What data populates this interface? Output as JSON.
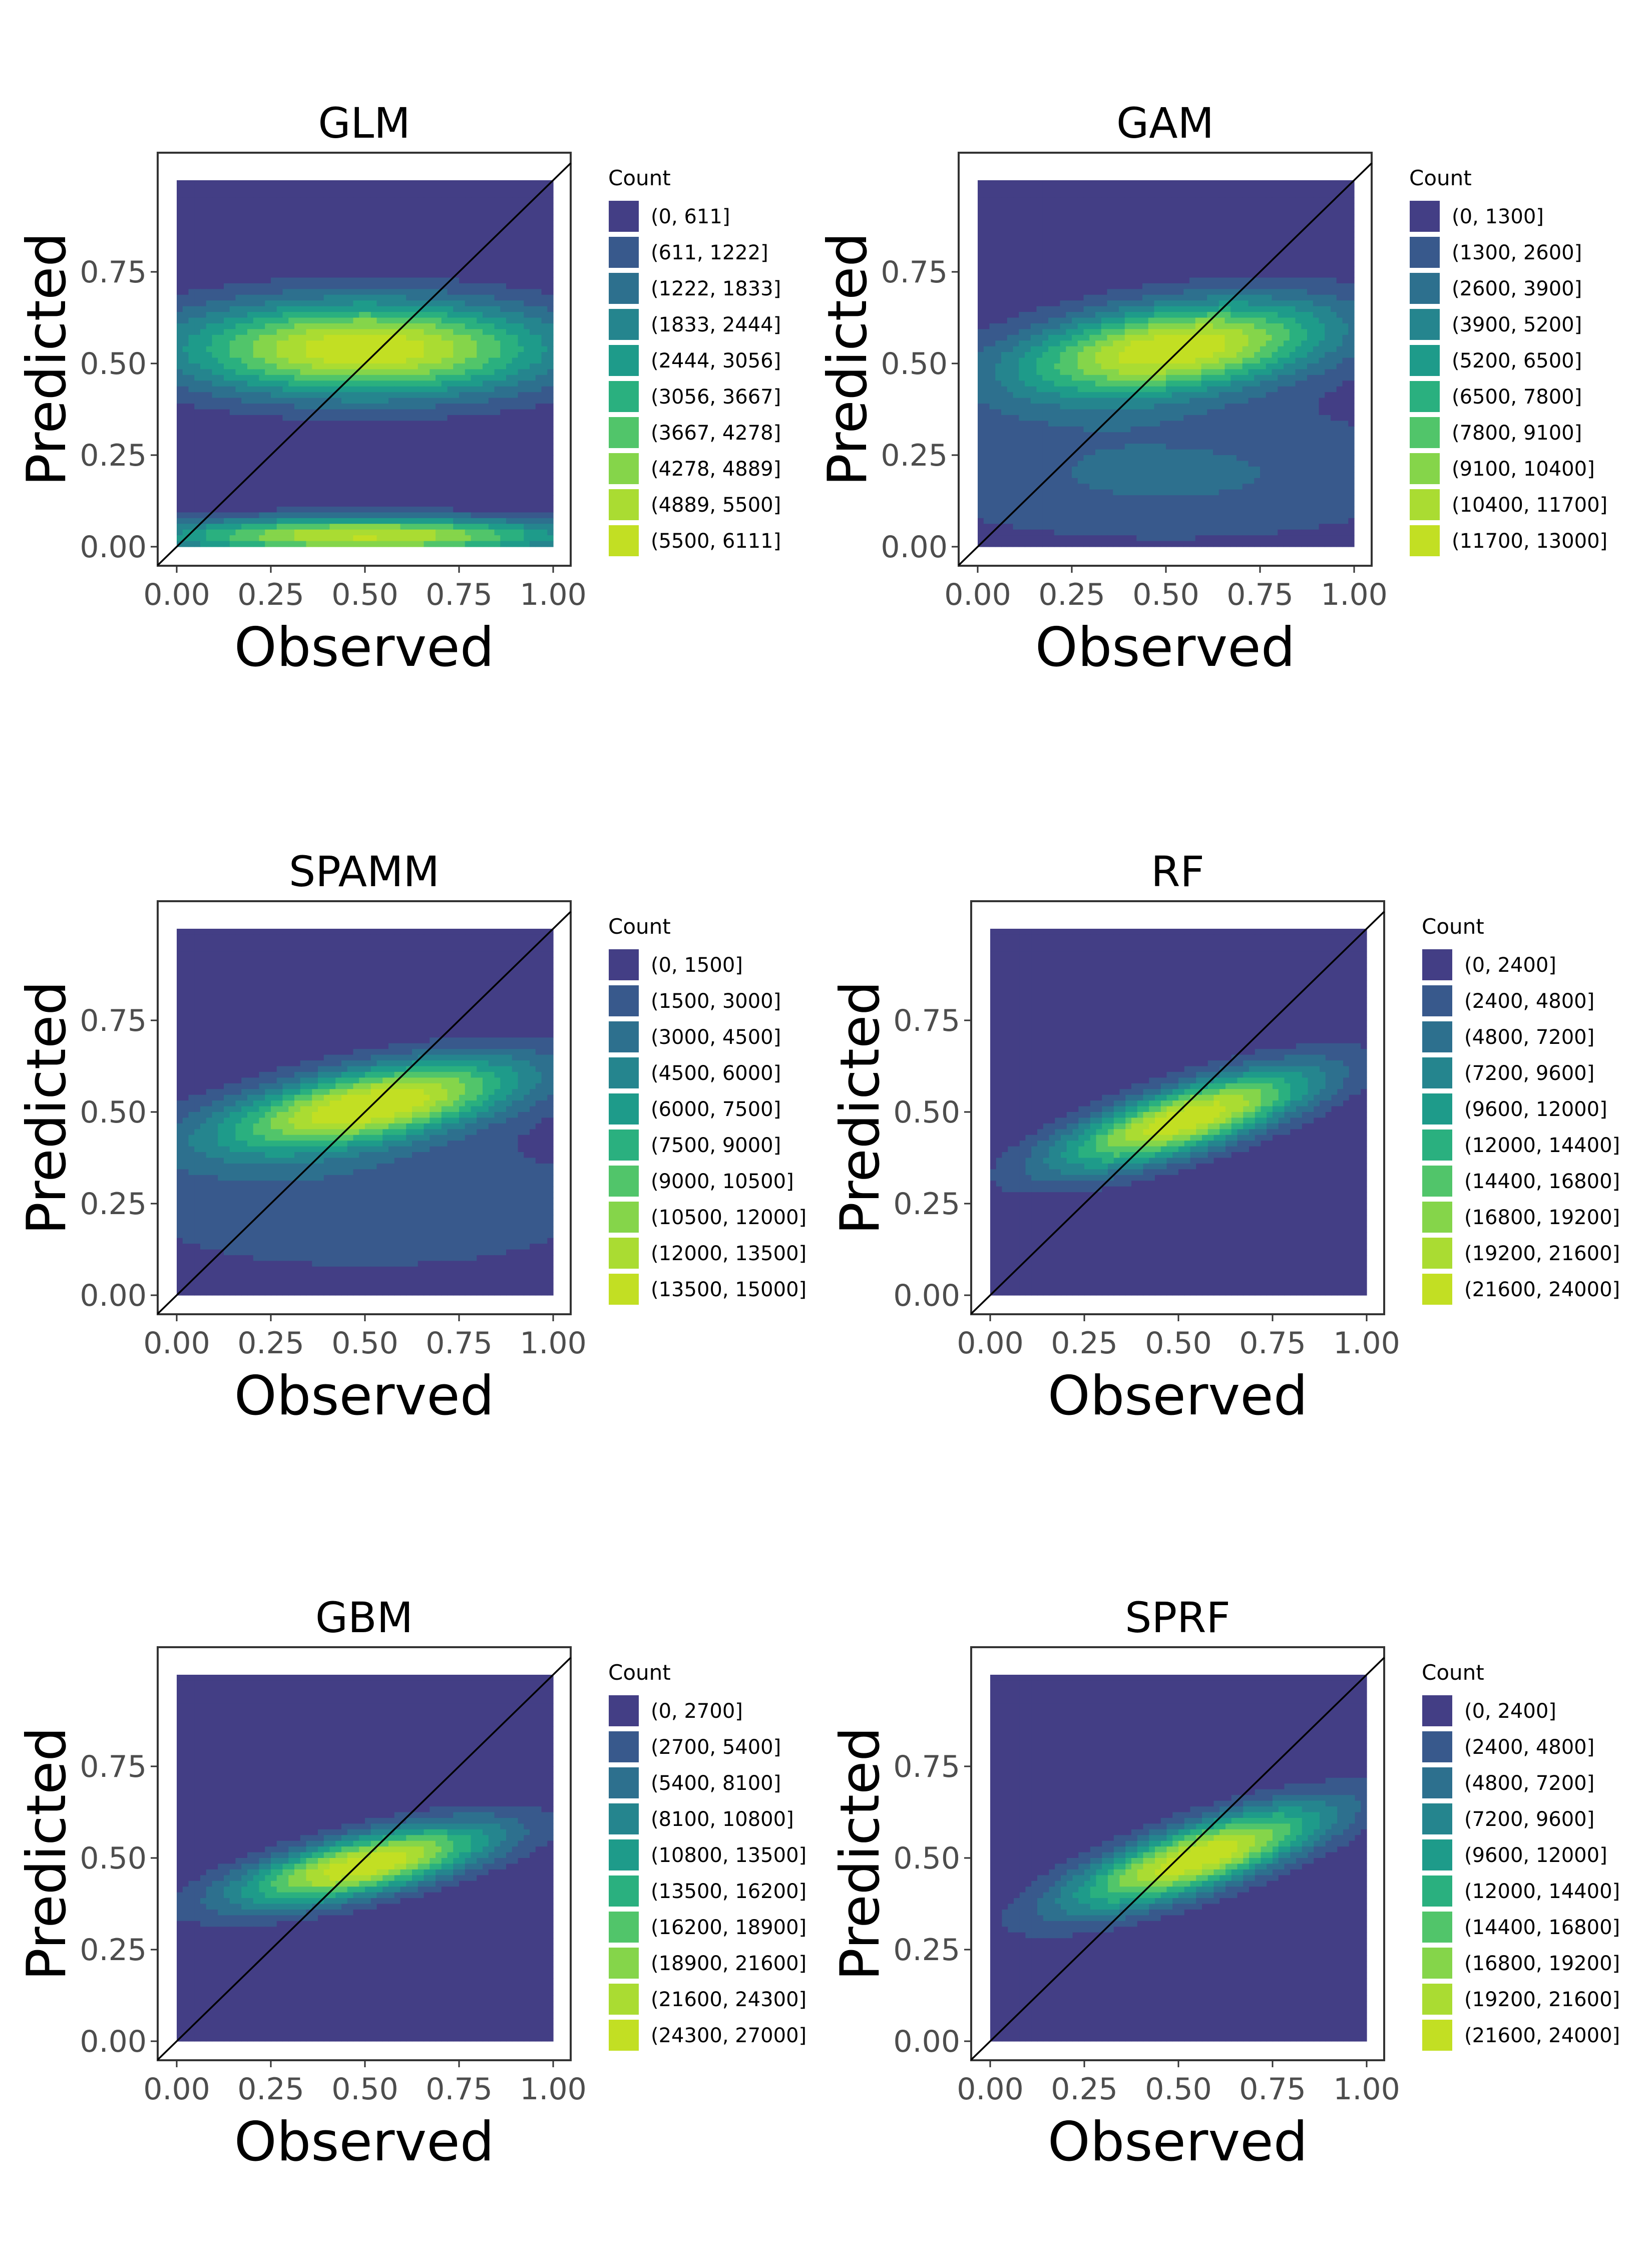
{
  "colors": {
    "viridis": [
      "#433e85",
      "#38598c",
      "#2d708e",
      "#25858e",
      "#1e9b8a",
      "#2ab07f",
      "#51c56a",
      "#85d54a",
      "#aadc32",
      "#c2df23"
    ],
    "diagonal": "#000000",
    "frame": "#333333"
  },
  "chart_data": [
    {
      "type": "heatmap",
      "title": "GLM",
      "xlabel": "Observed",
      "ylabel": "Predicted",
      "xlim": [
        0,
        1
      ],
      "ylim": [
        0,
        1
      ],
      "x_ticks": [
        "0.00",
        "0.25",
        "0.50",
        "0.75",
        "1.00"
      ],
      "y_ticks": [
        "0.00",
        "0.25",
        "0.50",
        "0.75"
      ],
      "legend_title": "Count",
      "legend": [
        "(0, 611]",
        "(611, 1222]",
        "(1222, 1833]",
        "(1833, 2444]",
        "(2444, 3056]",
        "(3056, 3667]",
        "(3667, 4278]",
        "(4278, 4889]",
        "(4889, 5500]",
        "(5500, 6111]"
      ],
      "density_peaks": [
        {
          "x": 0.5,
          "y": 0.54,
          "sx": 0.5,
          "sy": 0.13,
          "w": 1.0
        },
        {
          "x": 0.5,
          "y": 0.03,
          "sx": 0.55,
          "sy": 0.05,
          "w": 0.92
        }
      ],
      "reference_line": "y = x"
    },
    {
      "type": "heatmap",
      "title": "GAM",
      "xlabel": "Observed",
      "ylabel": "Predicted",
      "xlim": [
        0,
        1
      ],
      "ylim": [
        0,
        1
      ],
      "x_ticks": [
        "0.00",
        "0.25",
        "0.50",
        "0.75",
        "1.00"
      ],
      "y_ticks": [
        "0.00",
        "0.25",
        "0.50",
        "0.75"
      ],
      "legend_title": "Count",
      "legend": [
        "(0, 1300]",
        "(1300, 2600]",
        "(2600, 3900]",
        "(3900, 5200]",
        "(5200, 6500]",
        "(6500, 7800]",
        "(7800, 9100]",
        "(9100, 10400]",
        "(10400, 11700]",
        "(11700, 13000]"
      ],
      "density_peaks": [
        {
          "x": 0.52,
          "y": 0.54,
          "sx": 0.42,
          "sy": 0.12,
          "w": 1.0,
          "tilt": 0.12
        },
        {
          "x": 0.5,
          "y": 0.2,
          "sx": 0.8,
          "sy": 0.2,
          "w": 0.22
        }
      ],
      "reference_line": "y = x"
    },
    {
      "type": "heatmap",
      "title": "SPAMM",
      "xlabel": "Observed",
      "ylabel": "Predicted",
      "xlim": [
        0,
        1
      ],
      "ylim": [
        0,
        1
      ],
      "x_ticks": [
        "0.00",
        "0.25",
        "0.50",
        "0.75",
        "1.00"
      ],
      "y_ticks": [
        "0.00",
        "0.25",
        "0.50",
        "0.75"
      ],
      "legend_title": "Count",
      "legend": [
        "(0, 1500]",
        "(1500, 3000]",
        "(3000, 4500]",
        "(4500, 6000]",
        "(6000, 7500]",
        "(7500, 9000]",
        "(9000, 10500]",
        "(10500, 12000]",
        "(12000, 13500]",
        "(13500, 15000]"
      ],
      "density_peaks": [
        {
          "x": 0.52,
          "y": 0.52,
          "sx": 0.4,
          "sy": 0.1,
          "w": 1.0,
          "tilt": 0.18
        },
        {
          "x": 0.5,
          "y": 0.25,
          "sx": 0.8,
          "sy": 0.22,
          "w": 0.18
        }
      ],
      "reference_line": "y = x"
    },
    {
      "type": "heatmap",
      "title": "RF",
      "xlabel": "Observed",
      "ylabel": "Predicted",
      "xlim": [
        0,
        1
      ],
      "ylim": [
        0,
        1
      ],
      "x_ticks": [
        "0.00",
        "0.25",
        "0.50",
        "0.75",
        "1.00"
      ],
      "y_ticks": [
        "0.00",
        "0.25",
        "0.50",
        "0.75"
      ],
      "legend_title": "Count",
      "legend": [
        "(0, 2400]",
        "(2400, 4800]",
        "(4800, 7200]",
        "(7200, 9600]",
        "(9600, 12000]",
        "(12000, 14400]",
        "(14400, 16800]",
        "(16800, 19200]",
        "(19200, 21600]",
        "(21600, 24000]"
      ],
      "density_peaks": [
        {
          "x": 0.52,
          "y": 0.48,
          "sx": 0.34,
          "sy": 0.09,
          "w": 1.0,
          "tilt": 0.3
        }
      ],
      "reference_line": "y = x"
    },
    {
      "type": "heatmap",
      "title": "GBM",
      "xlabel": "Observed",
      "ylabel": "Predicted",
      "xlim": [
        0,
        1
      ],
      "ylim": [
        0,
        1
      ],
      "x_ticks": [
        "0.00",
        "0.25",
        "0.50",
        "0.75",
        "1.00"
      ],
      "y_ticks": [
        "0.00",
        "0.25",
        "0.50",
        "0.75"
      ],
      "legend_title": "Count",
      "legend": [
        "(0, 2700]",
        "(2700, 5400]",
        "(5400, 8100]",
        "(8100, 10800]",
        "(10800, 13500]",
        "(13500, 16200]",
        "(16200, 18900]",
        "(18900, 21600]",
        "(21600, 24300]",
        "(24300, 27000]"
      ],
      "density_peaks": [
        {
          "x": 0.5,
          "y": 0.48,
          "sx": 0.34,
          "sy": 0.08,
          "w": 1.0,
          "tilt": 0.22
        }
      ],
      "reference_line": "y = x"
    },
    {
      "type": "heatmap",
      "title": "SPRF",
      "xlabel": "Observed",
      "ylabel": "Predicted",
      "xlim": [
        0,
        1
      ],
      "ylim": [
        0,
        1
      ],
      "x_ticks": [
        "0.00",
        "0.25",
        "0.50",
        "0.75",
        "1.00"
      ],
      "y_ticks": [
        "0.00",
        "0.25",
        "0.50",
        "0.75"
      ],
      "legend_title": "Count",
      "legend": [
        "(0, 2400]",
        "(2400, 4800]",
        "(4800, 7200]",
        "(7200, 9600]",
        "(9600, 12000]",
        "(12000, 14400]",
        "(14400, 16800]",
        "(16800, 19200]",
        "(19200, 21600]",
        "(21600, 24000]"
      ],
      "density_peaks": [
        {
          "x": 0.55,
          "y": 0.5,
          "sx": 0.34,
          "sy": 0.09,
          "w": 1.0,
          "tilt": 0.32
        }
      ],
      "reference_line": "y = x"
    }
  ]
}
